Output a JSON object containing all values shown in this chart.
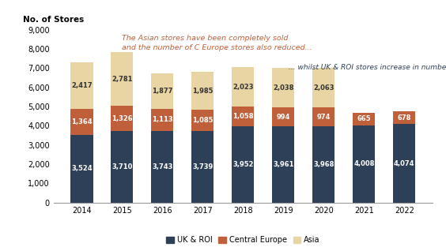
{
  "years": [
    "2014",
    "2015",
    "2016",
    "2017",
    "2018",
    "2019",
    "2020",
    "2021",
    "2022"
  ],
  "uk_roi": [
    3524,
    3710,
    3743,
    3739,
    3952,
    3961,
    3968,
    4008,
    4074
  ],
  "central_europe": [
    1364,
    1326,
    1113,
    1085,
    1058,
    994,
    974,
    665,
    678
  ],
  "asia": [
    2417,
    2781,
    1877,
    1985,
    2023,
    2038,
    2063,
    0,
    0
  ],
  "uk_roi_color": "#2e4057",
  "central_europe_color": "#c0603a",
  "asia_color": "#e8d5a3",
  "annotation1_text": "The Asian stores have been completely sold\nand the number of C Europe stores also reduced...",
  "annotation1_color": "#c0603a",
  "annotation2_text": "... whilst UK & ROI stores increase in number",
  "annotation2_color": "#2e4057",
  "ylabel": "No. of Stores",
  "ylim": [
    0,
    9000
  ],
  "yticks": [
    0,
    1000,
    2000,
    3000,
    4000,
    5000,
    6000,
    7000,
    8000,
    9000
  ],
  "legend_labels": [
    "UK & ROI",
    "Central Europe",
    "Asia"
  ],
  "background_color": "#ffffff",
  "label_fontsize": 6.0,
  "tick_fontsize": 7.0
}
